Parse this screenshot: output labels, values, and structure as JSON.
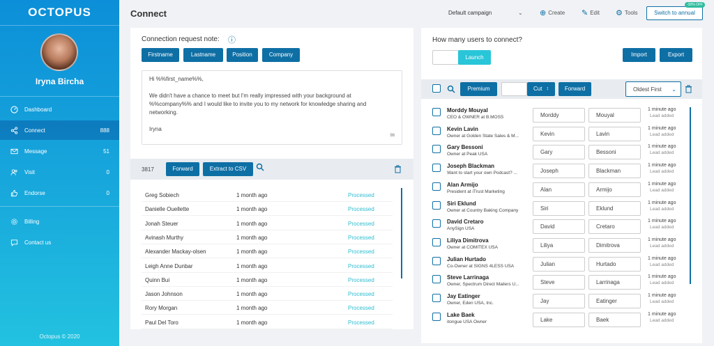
{
  "brand": {
    "logo": "OCTOPUS",
    "copyright": "Octopus © 2020"
  },
  "user": {
    "name": "Iryna Bircha"
  },
  "nav": [
    {
      "label": "Dashboard",
      "count": "",
      "icon": "dashboard-icon"
    },
    {
      "label": "Connect",
      "count": "888",
      "icon": "share-icon"
    },
    {
      "label": "Message",
      "count": "51",
      "icon": "mail-icon"
    },
    {
      "label": "Visit",
      "count": "0",
      "icon": "users-icon"
    },
    {
      "label": "Endorse",
      "count": "0",
      "icon": "thumbs-up-icon"
    },
    {
      "label": "Billing",
      "count": "",
      "icon": "gear-icon"
    },
    {
      "label": "Contact us",
      "count": "",
      "icon": "chat-icon"
    }
  ],
  "header": {
    "title": "Connect",
    "campaign": "Default campaign",
    "create": "Create",
    "edit": "Edit",
    "tools": "Tools",
    "annual": "Switch to annual",
    "discount": "-30% OFF"
  },
  "left": {
    "note_label": "Connection request note:",
    "tags": [
      "Firstname",
      "Lastname",
      "Position",
      "Company"
    ],
    "note_lines": [
      "Hi %%first_name%%,",
      "We didn't have a chance to meet but I'm really impressed with your background at %%company%% and I would like to invite you to my network for knowledge sharing and networking.",
      "Iryna"
    ],
    "char_count": "98",
    "count": "3817",
    "forward": "Forward",
    "extract": "Extract to CSV",
    "leads": [
      {
        "name": "Greg Sobiech",
        "time": "1 month ago",
        "status": "Processed"
      },
      {
        "name": "Danielle Ouellette",
        "time": "1 month ago",
        "status": "Processed"
      },
      {
        "name": "Jonah Steuer",
        "time": "1 month ago",
        "status": "Processed"
      },
      {
        "name": "Avinash Murthy",
        "time": "1 month ago",
        "status": "Processed"
      },
      {
        "name": "Alexander Mackay-olsen",
        "time": "1 month ago",
        "status": "Processed"
      },
      {
        "name": "Leigh Anne Dunbar",
        "time": "1 month ago",
        "status": "Processed"
      },
      {
        "name": "Quinn Bui",
        "time": "1 month ago",
        "status": "Processed"
      },
      {
        "name": "Jason Johnson",
        "time": "1 month ago",
        "status": "Processed"
      },
      {
        "name": "Rory Morgan",
        "time": "1 month ago",
        "status": "Processed"
      },
      {
        "name": "Paul Del Toro",
        "time": "1 month ago",
        "status": "Processed"
      }
    ]
  },
  "right": {
    "question": "How many users to connect?",
    "launch": "Launch",
    "import": "Import",
    "export": "Export",
    "premium": "Premium",
    "cut": "Cut",
    "forward": "Forward",
    "sort": "Oldest First",
    "people": [
      {
        "name": "Morddy Mouyal",
        "title": "CEO & OWNER at B.MOSS",
        "first": "Morddy",
        "last": "Mouyal",
        "time": "1 minute ago",
        "note": "Lead added"
      },
      {
        "name": "Kevin Lavin",
        "title": "Owner at Golden State Sales & M...",
        "first": "Kevin",
        "last": "Lavin",
        "time": "1 minute ago",
        "note": "Lead added"
      },
      {
        "name": "Gary Bessoni",
        "title": "Owner at Peak USA",
        "first": "Gary",
        "last": "Bessoni",
        "time": "1 minute ago",
        "note": "Lead added"
      },
      {
        "name": "Joseph Blackman",
        "title": "Want to start your own Podcast? ...",
        "first": "Joseph",
        "last": "Blackman",
        "time": "1 minute ago",
        "note": "Lead added"
      },
      {
        "name": "Alan Armijo",
        "title": "President at iTrust Marketing",
        "first": "Alan",
        "last": "Armijo",
        "time": "1 minute ago",
        "note": "Lead added"
      },
      {
        "name": "Siri Eklund",
        "title": "Owner at Country Baking Company",
        "first": "Siri",
        "last": "Eklund",
        "time": "1 minute ago",
        "note": "Lead added"
      },
      {
        "name": "David Cretaro",
        "title": "AnySign USA",
        "first": "David",
        "last": "Cretaro",
        "time": "1 minute ago",
        "note": "Lead added"
      },
      {
        "name": "Liliya Dimitrova",
        "title": "Owner at COMITEX USA",
        "first": "Liliya",
        "last": "Dimitrova",
        "time": "1 minute ago",
        "note": "Lead added"
      },
      {
        "name": "Julian Hurtado",
        "title": "Co-Owner at SIGNS 4LESS USA",
        "first": "Julian",
        "last": "Hurtado",
        "time": "1 minute ago",
        "note": "Lead added"
      },
      {
        "name": "Steve Larrinaga",
        "title": "Owner, Spectrum Direct Mailers U...",
        "first": "Steve",
        "last": "Larrinaga",
        "time": "1 minute ago",
        "note": "Lead added"
      },
      {
        "name": "Jay Eatinger",
        "title": "Owner, Eden USA, Inc.",
        "first": "Jay",
        "last": "Eatinger",
        "time": "1 minute ago",
        "note": "Lead added"
      },
      {
        "name": "Lake Baek",
        "title": "itongue USA Owner",
        "first": "Lake",
        "last": "Baek",
        "time": "1 minute ago",
        "note": "Lead added"
      }
    ]
  }
}
